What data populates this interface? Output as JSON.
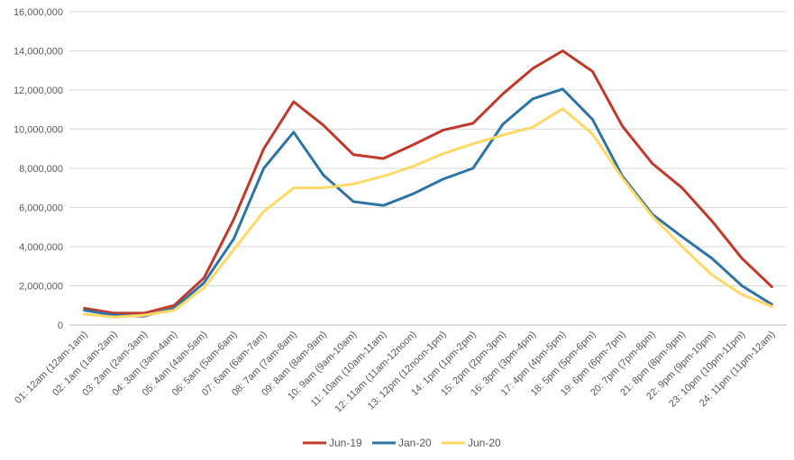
{
  "chart_data": {
    "type": "line",
    "title": "",
    "xlabel": "",
    "ylabel": "",
    "ylim": [
      0,
      16000000
    ],
    "yticks": [
      0,
      2000000,
      4000000,
      6000000,
      8000000,
      10000000,
      12000000,
      14000000,
      16000000
    ],
    "ytick_labels": [
      "0",
      "2,000,000",
      "4,000,000",
      "6,000,000",
      "8,000,000",
      "10,000,000",
      "12,000,000",
      "14,000,000",
      "16,000,000"
    ],
    "grid": true,
    "legend_position": "bottom",
    "categories": [
      "01: 12am (12am-1am)",
      "02: 1am (1am-2am)",
      "03: 2am (2am-3am)",
      "04: 3am (3am-4am)",
      "05: 4am (4am-5am)",
      "06: 5am (5am-6am)",
      "07: 6am (6am-7am)",
      "08: 7am (7am-8am)",
      "09: 8am (8am-9am)",
      "10: 9am (9am-10am)",
      "11: 10am (10am-11am)",
      "12: 11am (11am-12noon)",
      "13: 12pm (12noon-1pm)",
      "14: 1pm (1pm-2pm)",
      "15: 2pm (2pm-3pm)",
      "16: 3pm (3pm-4pm)",
      "17: 4pm (4pm-5pm)",
      "18: 5pm (5pm-6pm)",
      "19: 6pm (6pm-7pm)",
      "20: 7pm (7pm-8pm)",
      "21: 8pm (8pm-9pm)",
      "22: 9pm (9pm-10pm)",
      "23: 10pm (10pm-11pm)",
      "24: 11pm (11pm-12am)"
    ],
    "series": [
      {
        "name": "Jun-19",
        "color": "#c0392b",
        "values": [
          850000,
          600000,
          600000,
          1000000,
          2400000,
          5400000,
          9000000,
          11400000,
          10200000,
          8700000,
          8500000,
          9200000,
          9950000,
          10300000,
          11800000,
          13100000,
          14000000,
          12950000,
          10150000,
          8250000,
          7000000,
          5300000,
          3400000,
          1950000
        ]
      },
      {
        "name": "Jan-20",
        "color": "#2e75a6",
        "values": [
          750000,
          500000,
          450000,
          850000,
          2150000,
          4400000,
          8000000,
          9850000,
          7650000,
          6300000,
          6100000,
          6700000,
          7450000,
          8000000,
          10250000,
          11550000,
          12050000,
          10500000,
          7600000,
          5650000,
          4500000,
          3400000,
          2000000,
          1050000
        ]
      },
      {
        "name": "Jun-20",
        "color": "#ffd966",
        "values": [
          550000,
          400000,
          500000,
          750000,
          1900000,
          3850000,
          5800000,
          7000000,
          7000000,
          7200000,
          7600000,
          8100000,
          8750000,
          9250000,
          9700000,
          10100000,
          11050000,
          9750000,
          7500000,
          5550000,
          4000000,
          2550000,
          1550000,
          950000
        ]
      }
    ]
  }
}
